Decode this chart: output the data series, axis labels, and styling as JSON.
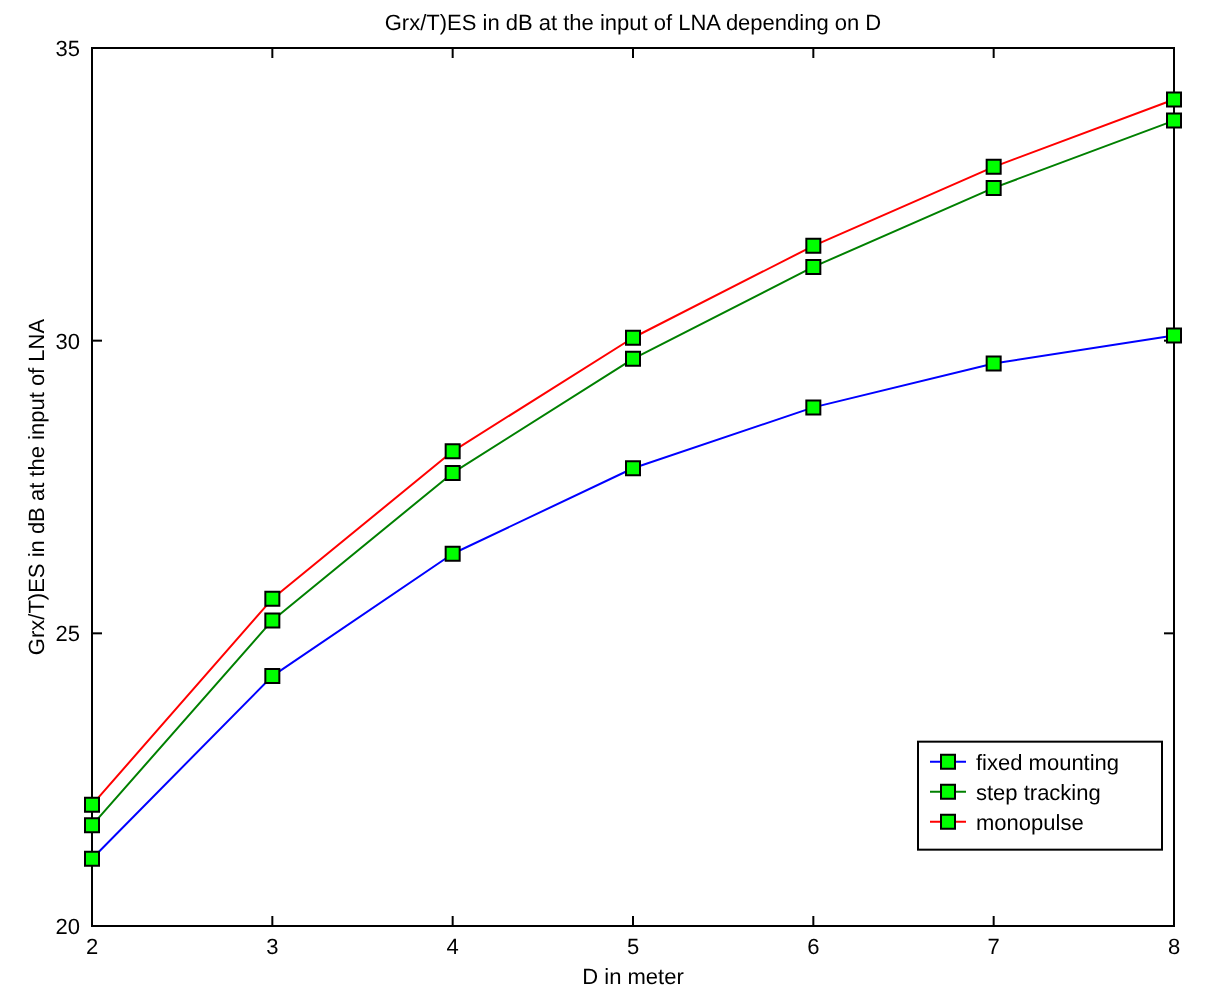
{
  "chart_data": {
    "type": "line",
    "title": "Grx/T)ES in dB at the input of LNA depending on D",
    "xlabel": "D in meter",
    "ylabel": "Grx/T)ES in dB at the input of LNA",
    "x": [
      2,
      3,
      4,
      5,
      6,
      7,
      8
    ],
    "xlim": [
      2,
      8
    ],
    "xticks": [
      2,
      3,
      4,
      5,
      6,
      7,
      8
    ],
    "ylim": [
      20,
      35
    ],
    "yticks": [
      20,
      25,
      30,
      35
    ],
    "grid": false,
    "legend": "bottom right",
    "marker": "square",
    "line_style": "solid",
    "series": [
      {
        "name": "fixed mounting",
        "color": "#0000ff",
        "values": [
          21.15,
          24.27,
          26.36,
          27.82,
          28.86,
          29.61,
          30.09
        ]
      },
      {
        "name": "step tracking",
        "color": "#008000",
        "values": [
          21.72,
          25.22,
          27.74,
          29.69,
          31.26,
          32.61,
          33.76
        ]
      },
      {
        "name": "monopulse",
        "color": "#ff0000",
        "values": [
          22.07,
          25.59,
          28.11,
          30.05,
          31.62,
          32.97,
          34.12
        ]
      }
    ]
  }
}
